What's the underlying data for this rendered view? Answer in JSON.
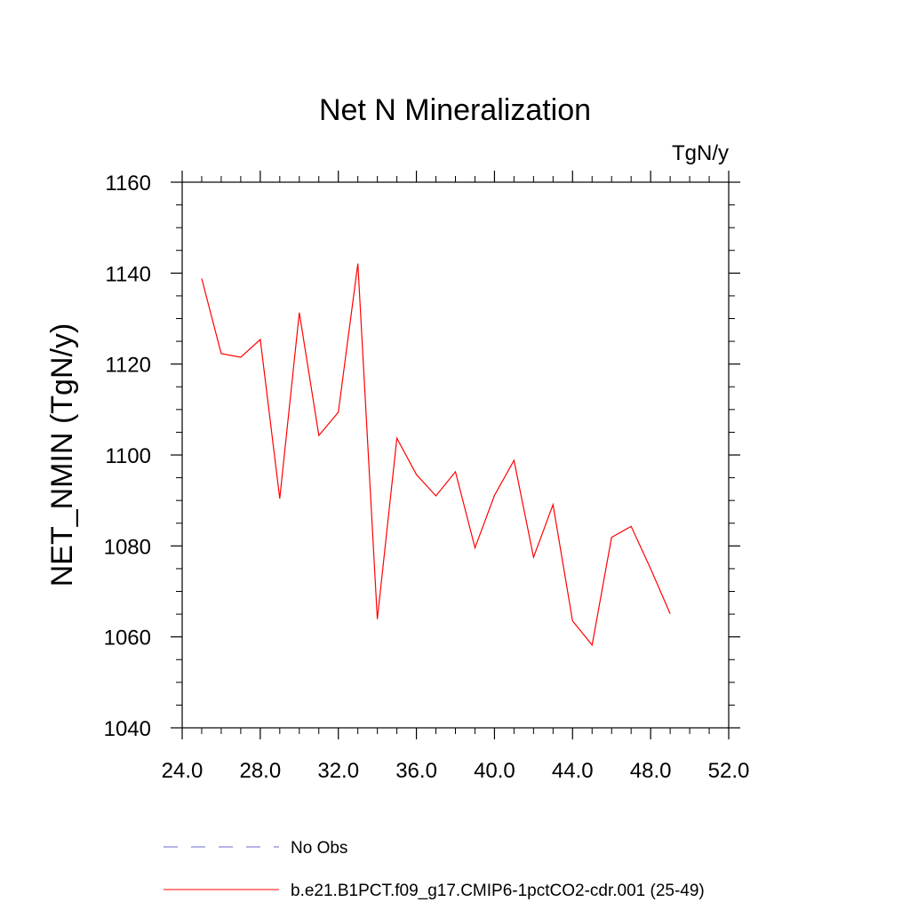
{
  "chart_data": {
    "type": "line",
    "title": "Net N Mineralization",
    "units_label": "TgN/y",
    "ylabel": "NET_NMIN  (TgN/y)",
    "xlabel": "",
    "xlim": [
      24,
      52
    ],
    "ylim": [
      1040,
      1160
    ],
    "x_ticks": [
      24,
      28,
      32,
      36,
      40,
      44,
      48,
      52
    ],
    "x_tick_labels": [
      "24.0",
      "28.0",
      "32.0",
      "36.0",
      "40.0",
      "44.0",
      "48.0",
      "52.0"
    ],
    "x_minor_step": 1,
    "y_ticks": [
      1040,
      1060,
      1080,
      1100,
      1120,
      1140,
      1160
    ],
    "y_tick_labels": [
      "1040",
      "1060",
      "1080",
      "1100",
      "1120",
      "1140",
      "1160"
    ],
    "y_minor_step": 5,
    "grid": false,
    "legend_position": "bottom",
    "series": [
      {
        "name": "b.e21.B1PCT.f09_g17.CMIP6-1pctCO2-cdr.001 (25-49)",
        "color": "#ff0000",
        "style": "solid",
        "x": [
          25,
          26,
          27,
          28,
          29,
          30,
          31,
          32,
          33,
          34,
          35,
          36,
          37,
          38,
          39,
          40,
          41,
          42,
          43,
          44,
          45,
          46,
          47,
          48,
          49
        ],
        "y": [
          1138.8,
          1122.3,
          1121.5,
          1125.4,
          1090.4,
          1131.3,
          1104.3,
          1109.4,
          1142.1,
          1063.9,
          1103.7,
          1095.7,
          1091.0,
          1096.3,
          1079.6,
          1091.1,
          1098.8,
          1077.5,
          1089.1,
          1063.5,
          1058.2,
          1081.9,
          1084.3,
          1075.0,
          1065.1
        ]
      }
    ],
    "legend": [
      {
        "label": "No Obs",
        "color": "#6a6ac8",
        "style": "dashed"
      },
      {
        "label": "b.e21.B1PCT.f09_g17.CMIP6-1pctCO2-cdr.001 (25-49)",
        "color": "#ff0000",
        "style": "solid"
      }
    ]
  }
}
